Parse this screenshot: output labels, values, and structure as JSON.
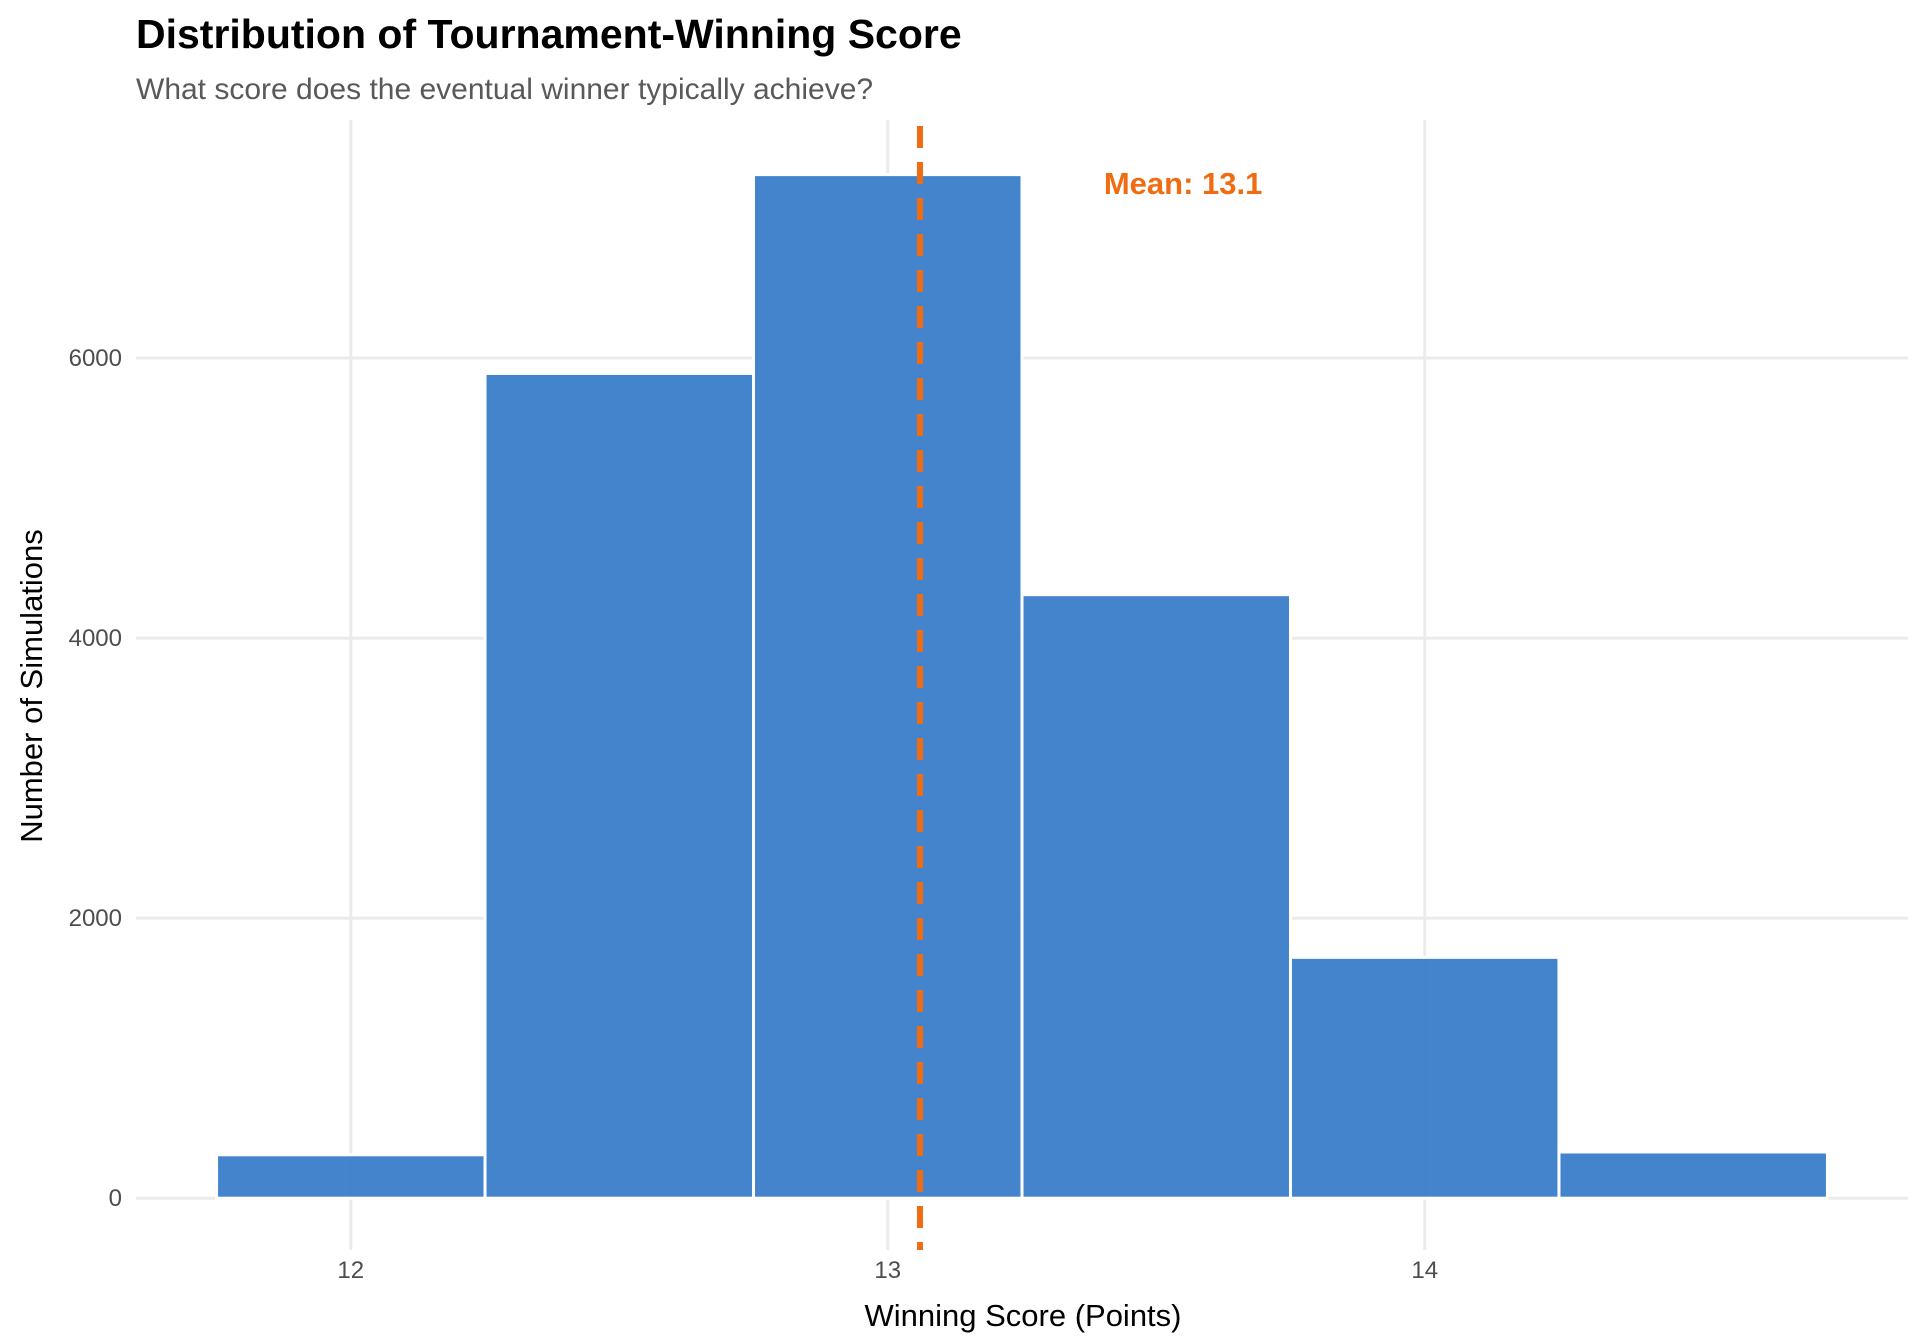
{
  "chart_data": {
    "type": "bar",
    "subtype": "histogram",
    "title": "Distribution of Tournament-Winning Score",
    "subtitle": "What score does the eventual winner typically achieve?",
    "xlabel": "Winning Score (Points)",
    "ylabel": "Number of Simulations",
    "bins": [
      {
        "x_start": 11.75,
        "x_end": 12.25,
        "count": 310
      },
      {
        "x_start": 12.25,
        "x_end": 12.75,
        "count": 5890
      },
      {
        "x_start": 12.75,
        "x_end": 13.25,
        "count": 7310
      },
      {
        "x_start": 13.25,
        "x_end": 13.75,
        "count": 4310
      },
      {
        "x_start": 13.75,
        "x_end": 14.25,
        "count": 1720
      },
      {
        "x_start": 14.25,
        "x_end": 14.75,
        "count": 330
      }
    ],
    "xlim": [
      11.6,
      14.9
    ],
    "ylim": [
      -370,
      7700
    ],
    "x_ticks": [
      {
        "value": 12,
        "label": "12"
      },
      {
        "value": 13,
        "label": "13"
      },
      {
        "value": 14,
        "label": "14"
      }
    ],
    "y_ticks": [
      {
        "value": 0,
        "label": "0"
      },
      {
        "value": 2000,
        "label": "2000"
      },
      {
        "value": 4000,
        "label": "4000"
      },
      {
        "value": 6000,
        "label": "6000"
      }
    ],
    "mean_line": {
      "value": 13.06,
      "style": "dashed",
      "color": "#f06c12"
    },
    "annotation": {
      "text": "Mean: 13.1",
      "x": 13.55,
      "y": 7250,
      "color": "#f06c12"
    },
    "bar_color": "#3a7dc9",
    "bar_edge_color": "#ffffff",
    "grid": true,
    "legend": "none"
  }
}
